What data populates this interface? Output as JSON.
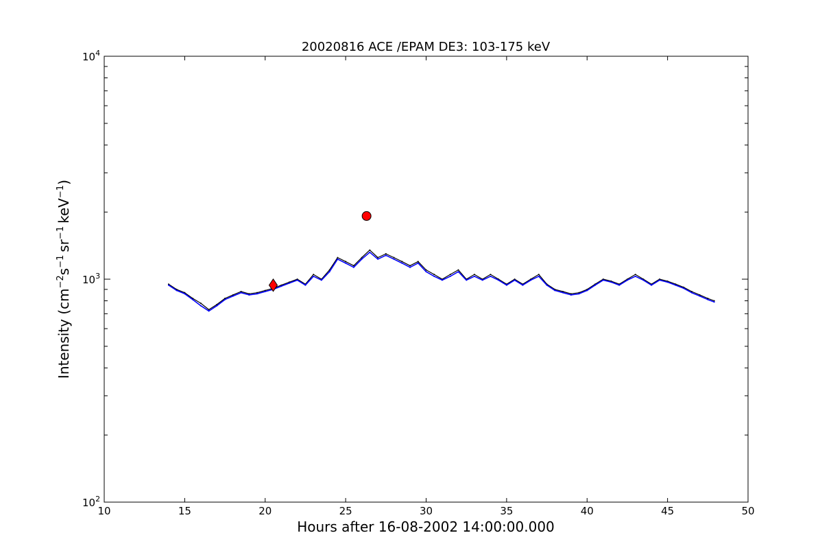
{
  "chart_data": {
    "type": "line",
    "title": "20020816 ACE /EPAM DE3: 103-175 keV",
    "xlabel": "Hours after 16-08-2002 14:00:00.000",
    "ylabel": {
      "prefix": "Intensity (cm",
      "exp1": "−2",
      "mid1": "s",
      "exp2": "−1",
      "mid2": "sr",
      "exp3": "−1",
      "mid3": "keV",
      "exp4": "−1",
      "suffix": ")"
    },
    "xlim": [
      10,
      50
    ],
    "ylim": [
      100,
      10000
    ],
    "yscale": "log",
    "x_ticks": [
      "10",
      "15",
      "20",
      "25",
      "30",
      "35",
      "40",
      "45",
      "50"
    ],
    "y_ticks": [
      {
        "base": "10",
        "exp": "2",
        "value": 100
      },
      {
        "base": "10",
        "exp": "3",
        "value": 1000
      },
      {
        "base": "10",
        "exp": "4",
        "value": 10000
      }
    ],
    "grid": false,
    "series": [
      {
        "color": "#000000",
        "x": [
          14.0,
          14.5,
          15.0,
          15.5,
          16.0,
          16.5,
          17.0,
          17.5,
          18.0,
          18.5,
          19.0,
          19.5,
          20.0,
          20.5,
          21.0,
          21.5,
          22.0,
          22.5,
          23.0,
          23.5,
          24.0,
          24.5,
          25.0,
          25.5,
          26.0,
          26.5,
          27.0,
          27.5,
          28.0,
          28.5,
          29.0,
          29.5,
          30.0,
          30.5,
          31.0,
          31.5,
          32.0,
          32.5,
          33.0,
          33.5,
          34.0,
          34.5,
          35.0,
          35.5,
          36.0,
          36.5,
          37.0,
          37.5,
          38.0,
          38.5,
          39.0,
          39.5,
          40.0,
          40.5,
          41.0,
          41.5,
          42.0,
          42.5,
          43.0,
          43.5,
          44.0,
          44.5,
          45.0,
          45.5,
          46.0,
          46.5,
          47.0,
          47.5,
          47.9
        ],
        "y": [
          950,
          900,
          870,
          820,
          780,
          730,
          770,
          820,
          850,
          880,
          860,
          870,
          890,
          910,
          940,
          970,
          1000,
          950,
          1050,
          1000,
          1100,
          1250,
          1200,
          1150,
          1250,
          1350,
          1250,
          1300,
          1250,
          1200,
          1150,
          1200,
          1100,
          1050,
          1000,
          1050,
          1100,
          1000,
          1050,
          1000,
          1050,
          1000,
          950,
          1000,
          950,
          1000,
          1050,
          950,
          900,
          880,
          860,
          870,
          900,
          950,
          1000,
          980,
          950,
          1000,
          1050,
          1000,
          950,
          1000,
          980,
          950,
          920,
          880,
          850,
          820,
          800
        ]
      },
      {
        "color": "#0000ff",
        "x": [
          14.0,
          14.5,
          15.0,
          15.5,
          16.0,
          16.5,
          17.0,
          17.5,
          18.0,
          18.5,
          19.0,
          19.5,
          20.0,
          20.5,
          21.0,
          21.5,
          22.0,
          22.5,
          23.0,
          23.5,
          24.0,
          24.5,
          25.0,
          25.5,
          26.0,
          26.5,
          27.0,
          27.5,
          28.0,
          28.5,
          29.0,
          29.5,
          30.0,
          30.5,
          31.0,
          31.5,
          32.0,
          32.5,
          33.0,
          33.5,
          34.0,
          34.5,
          35.0,
          35.5,
          36.0,
          36.5,
          37.0,
          37.5,
          38.0,
          38.5,
          39.0,
          39.5,
          40.0,
          40.5,
          41.0,
          41.5,
          42.0,
          42.5,
          43.0,
          43.5,
          44.0,
          44.5,
          45.0,
          45.5,
          46.0,
          46.5,
          47.0,
          47.5,
          47.9
        ],
        "y": [
          940,
          890,
          860,
          810,
          760,
          720,
          760,
          810,
          840,
          870,
          850,
          860,
          880,
          900,
          930,
          960,
          990,
          940,
          1030,
          990,
          1080,
          1230,
          1180,
          1130,
          1230,
          1320,
          1230,
          1280,
          1230,
          1180,
          1130,
          1180,
          1080,
          1030,
          990,
          1030,
          1080,
          990,
          1030,
          990,
          1030,
          990,
          940,
          990,
          940,
          990,
          1030,
          940,
          890,
          870,
          850,
          860,
          890,
          940,
          990,
          970,
          940,
          990,
          1030,
          990,
          940,
          990,
          970,
          940,
          910,
          870,
          840,
          810,
          790
        ]
      }
    ],
    "markers": [
      {
        "shape": "diamond",
        "x": 20.5,
        "y": 940,
        "color": "#ff0000"
      },
      {
        "shape": "circle",
        "x": 26.3,
        "y": 1920,
        "color": "#ff0000"
      }
    ]
  }
}
